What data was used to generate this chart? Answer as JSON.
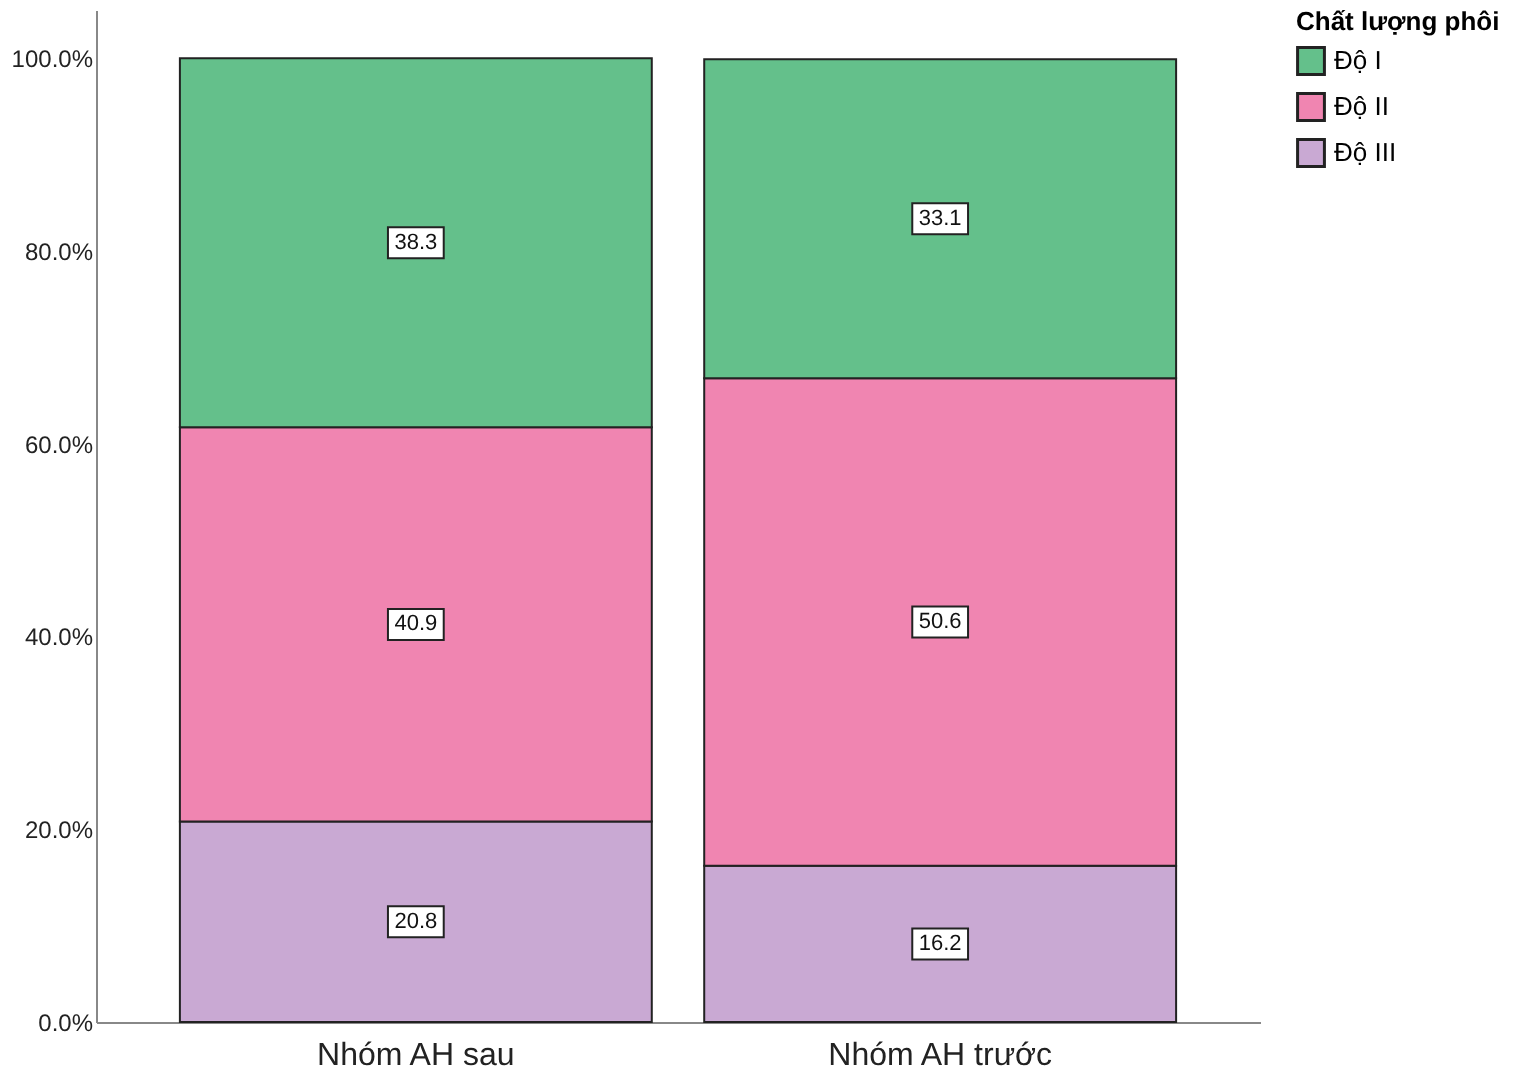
{
  "chart_data": {
    "type": "bar",
    "stacked": true,
    "legend_title": "Chất lượng phôi",
    "legend": "top right",
    "categories": [
      "Nhóm AH sau",
      "Nhóm AH trước"
    ],
    "series": [
      {
        "name": "Độ III",
        "color": "#c9a9d3",
        "values": [
          20.8,
          16.2
        ]
      },
      {
        "name": "Độ II",
        "color": "#f085b1",
        "values": [
          40.9,
          50.6
        ]
      },
      {
        "name": "Độ I",
        "color": "#64c08b",
        "values": [
          38.3,
          33.1
        ]
      }
    ],
    "ylim": [
      0,
      105
    ],
    "yticks": [
      {
        "value": 0,
        "label": "0.0%"
      },
      {
        "value": 20,
        "label": "20.0%"
      },
      {
        "value": 40,
        "label": "40.0%"
      },
      {
        "value": 60,
        "label": "60.0%"
      },
      {
        "value": 80,
        "label": "80.0%"
      },
      {
        "value": 100,
        "label": "100.0%"
      }
    ],
    "data_labels": true,
    "grid": false
  }
}
